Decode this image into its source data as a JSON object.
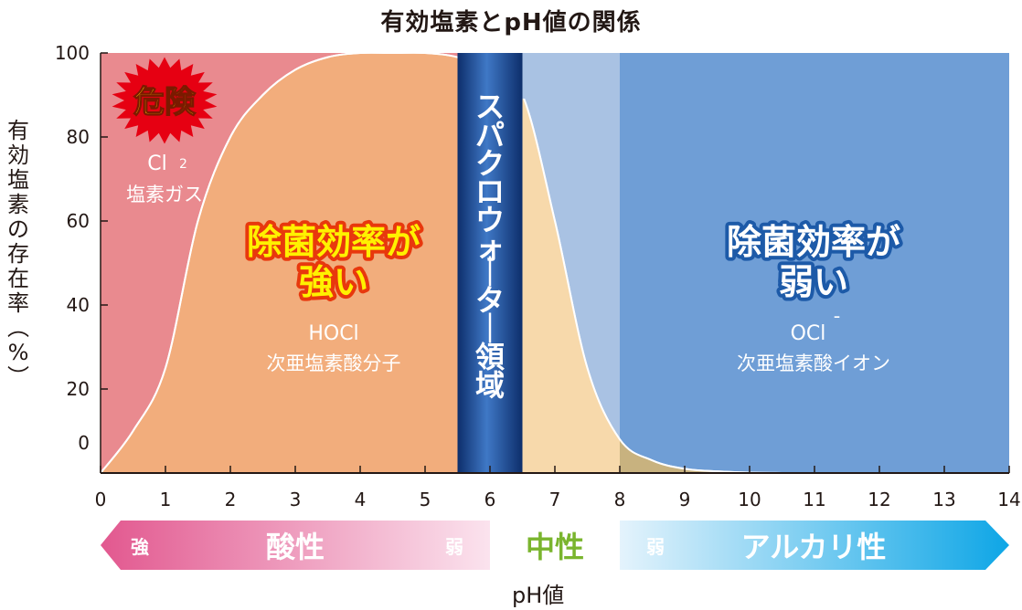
{
  "title": "有効塩素とpH値の関係",
  "y_axis_title": "有効塩素の存在率（%）",
  "x_axis_title": "pH値",
  "colors": {
    "danger_zone": "#e98a8f",
    "hocl_zone": "#f2ad7c",
    "ocl_zone": "#6f9ed6",
    "neutral_light": "#a9c2e3",
    "neutral_peach": "#f7d9ab",
    "overlap_olive": "#c8b27f",
    "sparko_band": "#1f4f9c",
    "acid_arrow": "#e66f9a",
    "neutral_text": "#7ab52e",
    "alkali_arrow": "#22a6e3"
  },
  "chart_data": {
    "type": "area",
    "title": "有効塩素とpH値の関係",
    "xlabel": "pH値",
    "ylabel": "有効塩素の存在率（%）",
    "xlim": [
      0,
      14
    ],
    "ylim": [
      0,
      100
    ],
    "x_ticks": [
      "0",
      "1",
      "2",
      "3",
      "4",
      "5",
      "6",
      "7",
      "8",
      "9",
      "10",
      "11",
      "12",
      "13",
      "14"
    ],
    "y_ticks": [
      "0",
      "20",
      "40",
      "60",
      "80",
      "100"
    ],
    "regions": [
      {
        "label": "Cl2 塩素ガス",
        "x_range": [
          0,
          2.5
        ]
      },
      {
        "label": "HOCl 次亜塩素酸分子",
        "x_range": [
          0,
          6.5
        ]
      },
      {
        "label": "スパクロウォーター領域",
        "x_range": [
          5.5,
          6.5
        ]
      },
      {
        "label": "OCl⁻ 次亜塩素酸イオン",
        "x_range": [
          6.5,
          14
        ]
      }
    ],
    "hocl_curve": {
      "x": [
        0,
        0.5,
        1,
        1.5,
        2,
        2.5,
        3,
        3.5,
        4,
        4.5,
        5,
        5.5,
        6,
        6.5,
        7,
        7.5,
        8,
        8.5,
        9,
        9.5,
        10,
        10.5
      ],
      "y": [
        0,
        10,
        25,
        60,
        80,
        90,
        96,
        99,
        100,
        100,
        100,
        99,
        96,
        90,
        60,
        25,
        8,
        3,
        1,
        0.4,
        0.1,
        0
      ]
    }
  },
  "labels": {
    "danger_badge": "危険",
    "cl2_formula": "Cl",
    "cl2_sub": "2",
    "cl2_name": "塩素ガス",
    "strong_line1": "除菌効率が",
    "strong_line2": "強い",
    "hocl_formula": "HOCl",
    "hocl_name": "次亜塩素酸分子",
    "sparko_vertical": "スパクロウォーター領域",
    "weak_line1": "除菌効率が",
    "weak_line2": "弱い",
    "ocl_formula": "OCl",
    "ocl_sup": "¯",
    "ocl_name": "次亜塩素酸イオン"
  },
  "scale_bar": {
    "acid_strong": "強",
    "acid_label": "酸性",
    "acid_weak": "弱",
    "neutral_label": "中性",
    "alkali_weak": "弱",
    "alkali_label": "アルカリ性"
  }
}
